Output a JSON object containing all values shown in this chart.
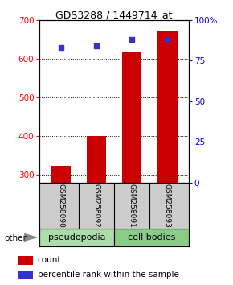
{
  "title": "GDS3288 / 1449714_at",
  "samples": [
    "GSM258090",
    "GSM258092",
    "GSM258091",
    "GSM258093"
  ],
  "counts": [
    322,
    400,
    619,
    672
  ],
  "percentiles": [
    83,
    84,
    88,
    88
  ],
  "ylim_left": [
    280,
    700
  ],
  "ylim_right": [
    0,
    100
  ],
  "yticks_left": [
    300,
    400,
    500,
    600,
    700
  ],
  "yticks_right": [
    0,
    25,
    50,
    75,
    100
  ],
  "bar_color": "#cc0000",
  "dot_color": "#3333cc",
  "group_labels": [
    "pseudopodia",
    "cell bodies"
  ],
  "group_colors": [
    "#aaddaa",
    "#88cc88"
  ],
  "group_ranges": [
    [
      0,
      2
    ],
    [
      2,
      4
    ]
  ],
  "other_label": "other",
  "legend_count_label": "count",
  "legend_pct_label": "percentile rank within the sample",
  "background_color": "#ffffff",
  "plot_bg": "#ffffff",
  "bar_width": 0.55,
  "sample_bg": "#cccccc"
}
